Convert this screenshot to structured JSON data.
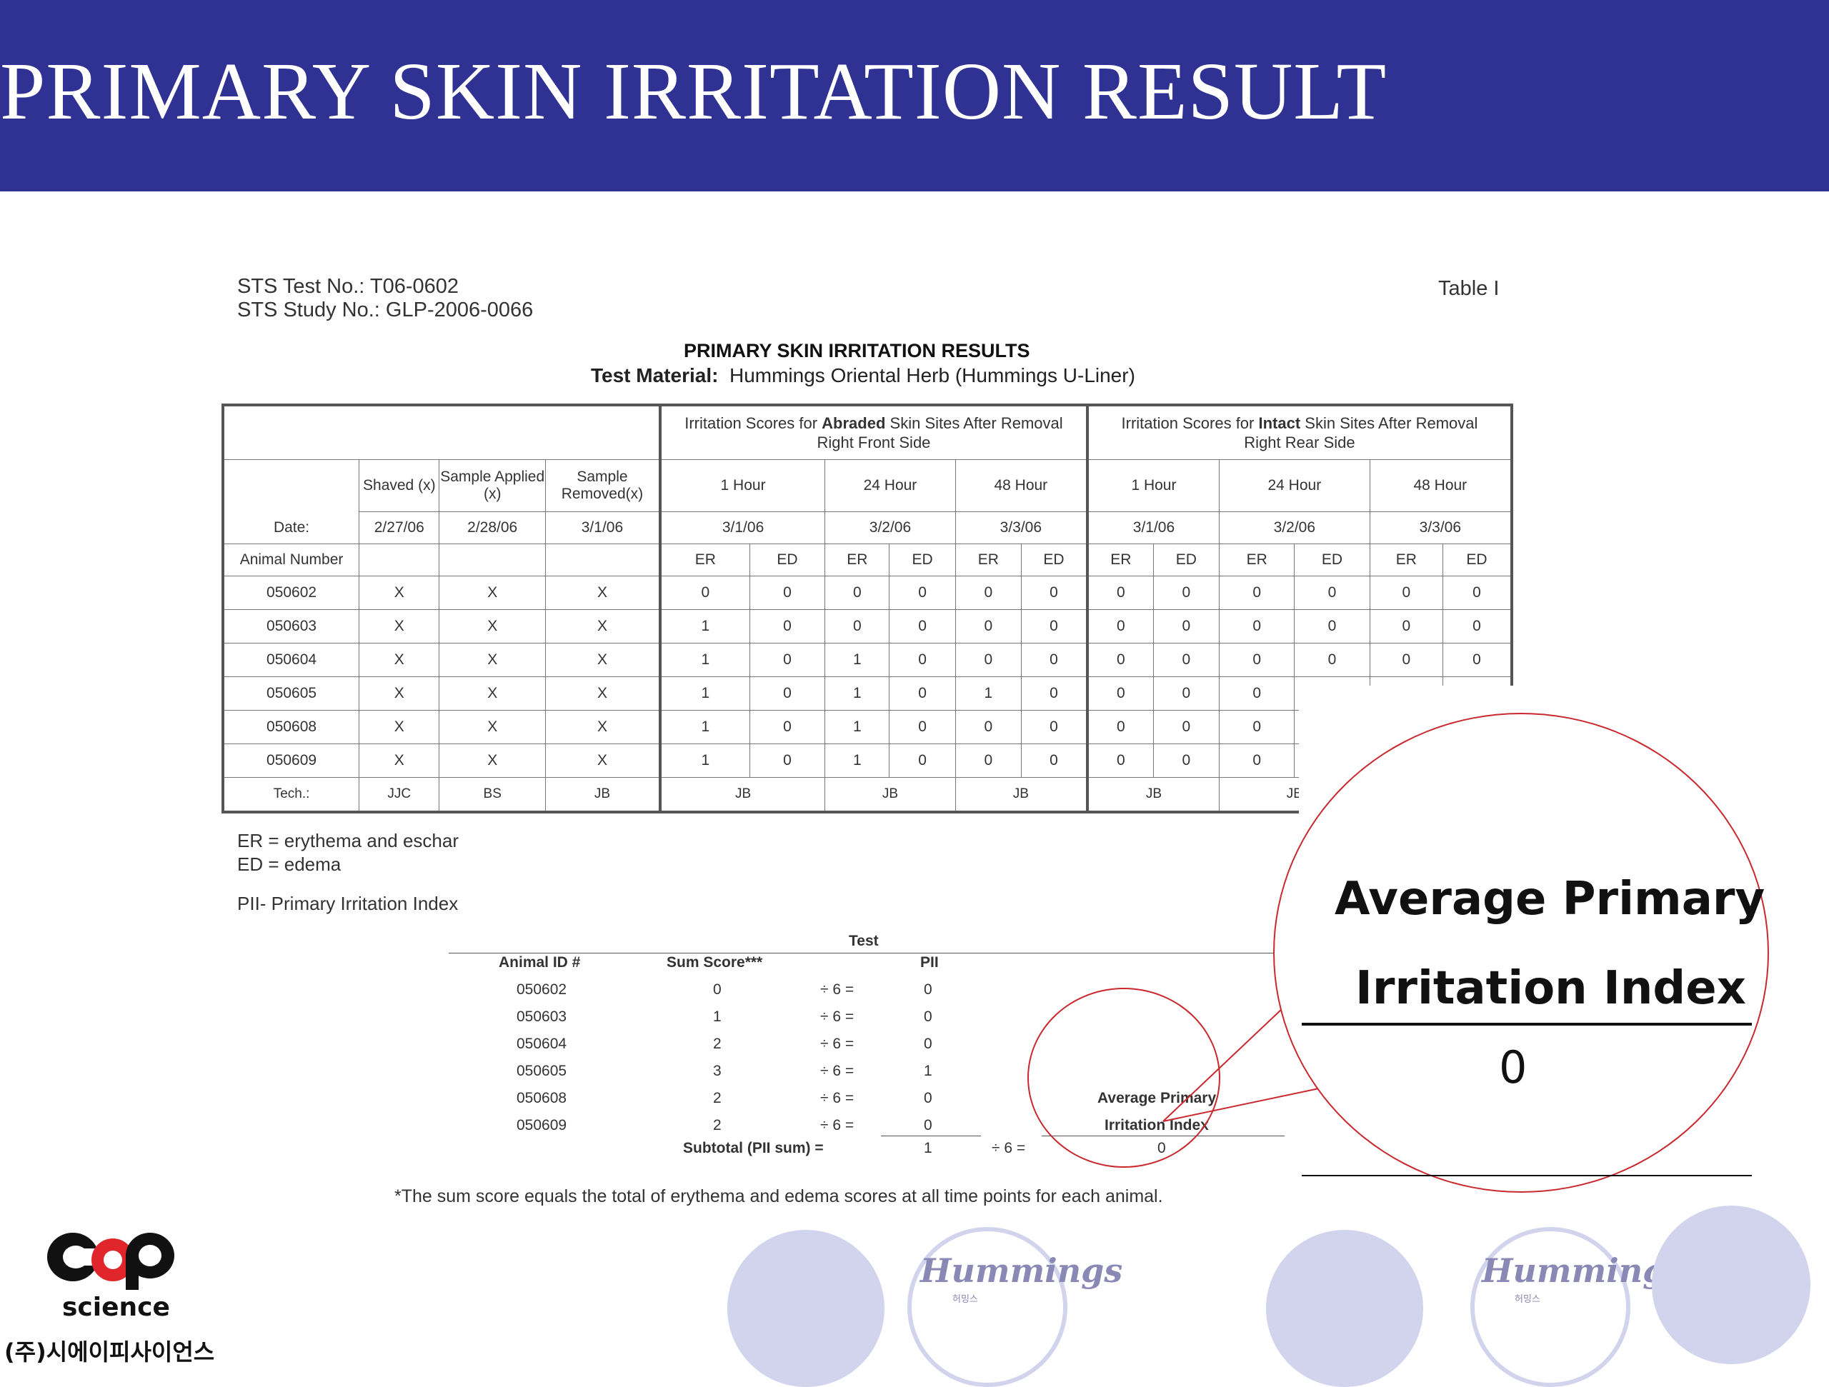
{
  "slide": {
    "title": "PRIMARY SKIN IRRITATION RESULT"
  },
  "doc": {
    "test_no": "STS Test No.:  T06-0602",
    "study_no": "STS Study No.:  GLP-2006-0066",
    "table_label": "Table I",
    "title": "PRIMARY SKIN IRRITATION RESULTS",
    "material_label": "Test Material:",
    "material_value": "Hummings Oriental Herb (Hummings U-Liner)"
  },
  "table": {
    "abraded_header_pre": "Irritation Scores for ",
    "abraded_header_bold": "Abraded",
    "abraded_header_post": " Skin Sites After Removal",
    "abraded_side": "Right Front Side",
    "intact_header_pre": "Irritation Scores for ",
    "intact_header_bold": "Intact",
    "intact_header_post": " Skin Sites After Removal",
    "intact_side": "Right Rear Side",
    "shaved": "Shaved (x)",
    "applied": "Sample Applied (x)",
    "removed": "Sample Removed(x)",
    "times": [
      "1 Hour",
      "24 Hour",
      "48 Hour",
      "1 Hour",
      "24 Hour",
      "48 Hour"
    ],
    "date_label": "Date:",
    "dates": [
      "2/27/06",
      "2/28/06",
      "3/1/06",
      "3/1/06",
      "3/2/06",
      "3/3/06",
      "3/1/06",
      "3/2/06",
      "3/3/06"
    ],
    "animal_label": "Animal Number",
    "er": "ER",
    "ed": "ED",
    "rows": [
      {
        "id": "050602",
        "marks": [
          "X",
          "X",
          "X"
        ],
        "scores": [
          "0",
          "0",
          "0",
          "0",
          "0",
          "0",
          "0",
          "0",
          "0",
          "0",
          "0",
          "0"
        ]
      },
      {
        "id": "050603",
        "marks": [
          "X",
          "X",
          "X"
        ],
        "scores": [
          "1",
          "0",
          "0",
          "0",
          "0",
          "0",
          "0",
          "0",
          "0",
          "0",
          "0",
          "0"
        ]
      },
      {
        "id": "050604",
        "marks": [
          "X",
          "X",
          "X"
        ],
        "scores": [
          "1",
          "0",
          "1",
          "0",
          "0",
          "0",
          "0",
          "0",
          "0",
          "0",
          "0",
          "0"
        ]
      },
      {
        "id": "050605",
        "marks": [
          "X",
          "X",
          "X"
        ],
        "scores": [
          "1",
          "0",
          "1",
          "0",
          "1",
          "0",
          "0",
          "0",
          "0",
          "",
          "",
          ""
        ]
      },
      {
        "id": "050608",
        "marks": [
          "X",
          "X",
          "X"
        ],
        "scores": [
          "1",
          "0",
          "1",
          "0",
          "0",
          "0",
          "0",
          "0",
          "0",
          "",
          "",
          ""
        ]
      },
      {
        "id": "050609",
        "marks": [
          "X",
          "X",
          "X"
        ],
        "scores": [
          "1",
          "0",
          "1",
          "0",
          "0",
          "0",
          "0",
          "0",
          "0",
          "",
          "",
          ""
        ]
      }
    ],
    "tech_label": "Tech.:",
    "techs": [
      "JJC",
      "BS",
      "JB",
      "JB",
      "JB",
      "JB",
      "JB",
      "JB"
    ]
  },
  "legend": {
    "er": "ER = erythema and eschar",
    "ed": "ED = edema",
    "pii": "PII- Primary Irritation Index"
  },
  "pii_table": {
    "test_label": "Test",
    "col_id": "Animal ID #",
    "col_sum": "Sum Score***",
    "col_pii": "PII",
    "rows": [
      {
        "id": "050602",
        "sum": "0",
        "div": "÷ 6 =",
        "pii": "0"
      },
      {
        "id": "050603",
        "sum": "1",
        "div": "÷ 6 =",
        "pii": "0"
      },
      {
        "id": "050604",
        "sum": "2",
        "div": "÷ 6 =",
        "pii": "0"
      },
      {
        "id": "050605",
        "sum": "3",
        "div": "÷ 6 =",
        "pii": "1"
      },
      {
        "id": "050608",
        "sum": "2",
        "div": "÷ 6 =",
        "pii": "0"
      },
      {
        "id": "050609",
        "sum": "2",
        "div": "÷ 6 =",
        "pii": "0"
      }
    ],
    "subtotal_label": "Subtotal (PII sum) =",
    "subtotal_value": "1",
    "subtotal_div": "÷ 6 =",
    "avg_label_1": "Average Primary",
    "avg_label_2": "Irritation Index",
    "avg_value": "0"
  },
  "footnote": "*The sum score equals the total of erythema and edema scores at all time points for each animal.",
  "zoom": {
    "line1": "Average Primary",
    "line2": "Irritation Index",
    "value": "0"
  },
  "branding": {
    "cap_word": "science",
    "cap_korean": "(주)시에이피사이언스",
    "hummings_1": "Hummings",
    "hummings_2": "Hummings",
    "hummings_sub": "허밍스"
  },
  "colors": {
    "banner": "#2f3293",
    "bubble": "#d2d4ee",
    "zoom_circle": "#c9292e",
    "cap_red": "#e0262a"
  }
}
